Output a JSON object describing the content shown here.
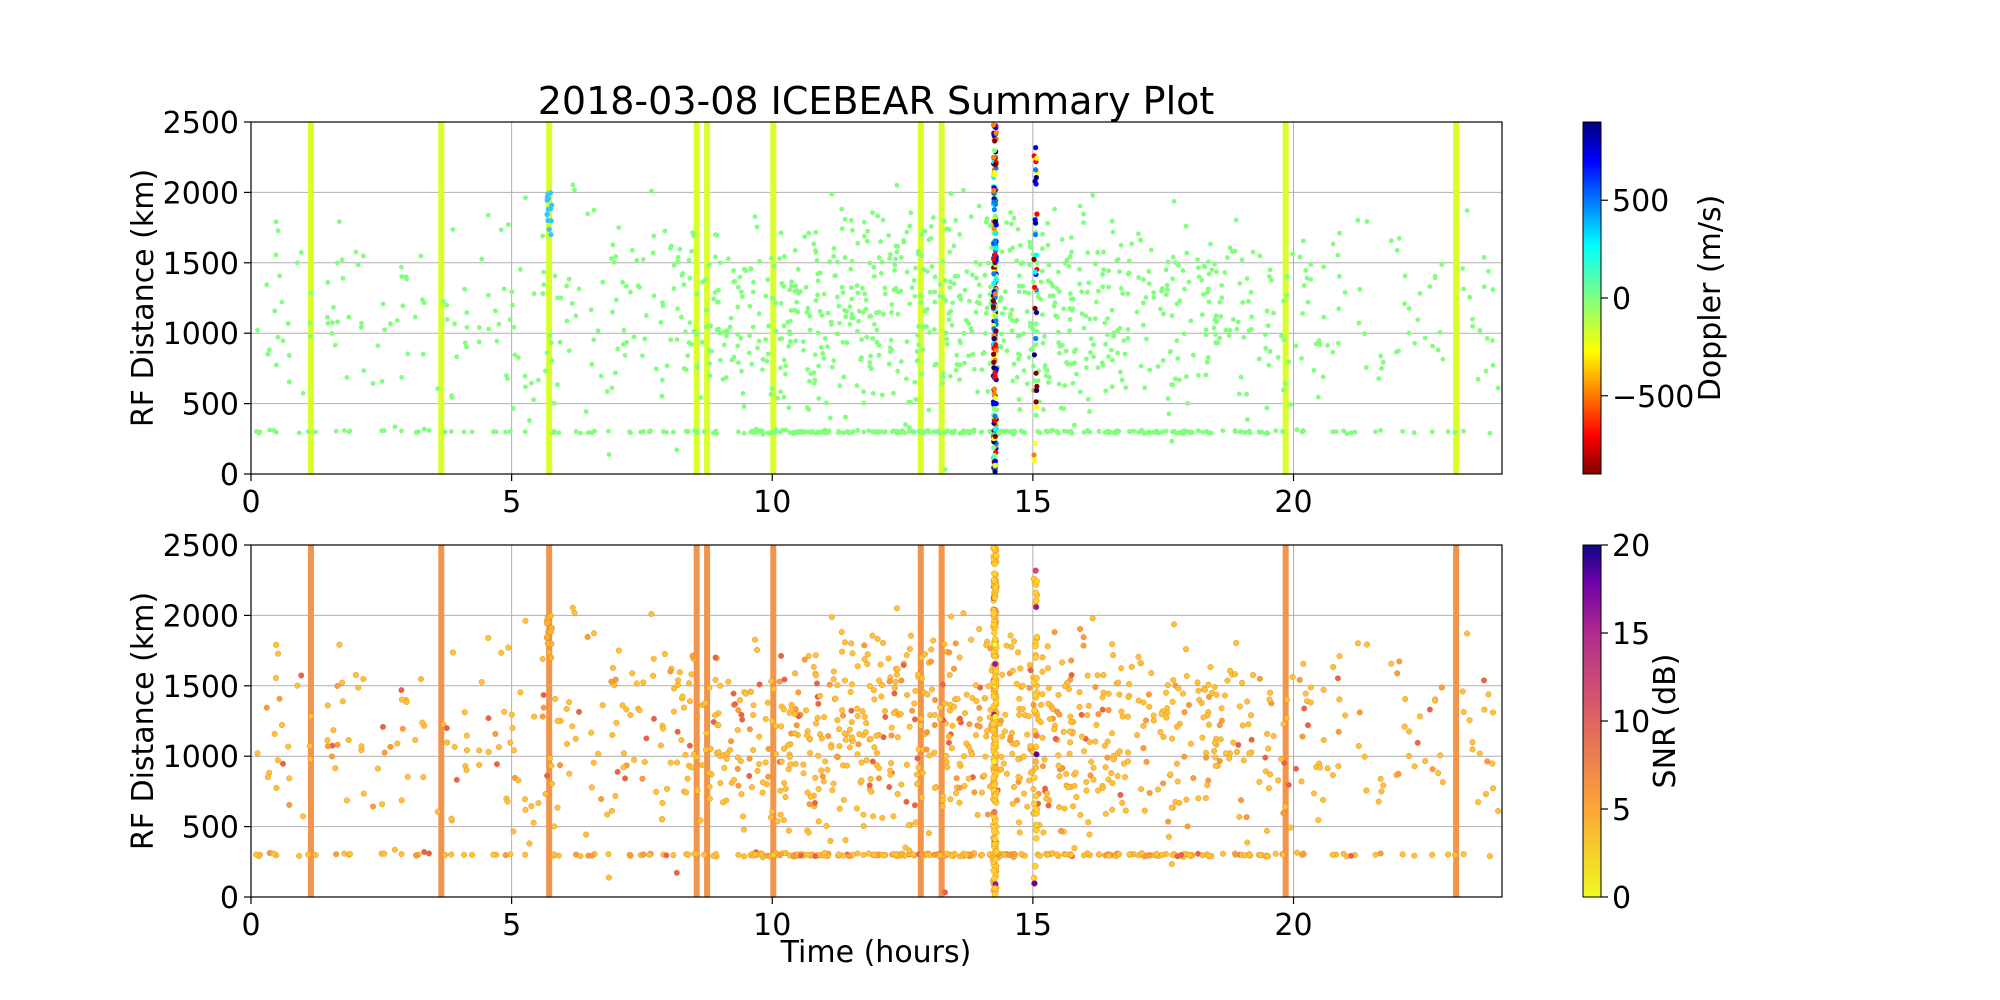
{
  "title": "2018-03-08 ICEBEAR Summary Plot",
  "panels": [
    {
      "ylabel": "RF Distance (km)",
      "xlabel": "",
      "colorbar": {
        "label": "Doppler (m/s)",
        "ticks": [
          "500",
          "0",
          "−500"
        ],
        "tick_values": [
          500,
          0,
          -500
        ],
        "range": [
          -900,
          900
        ],
        "colormap": "jet_r"
      }
    },
    {
      "ylabel": "RF Distance (km)",
      "xlabel": "Time (hours)",
      "colorbar": {
        "label": "SNR (dB)",
        "ticks": [
          "20",
          "15",
          "10",
          "5",
          "0"
        ],
        "tick_values": [
          20,
          15,
          10,
          5,
          0
        ],
        "range": [
          0,
          20
        ],
        "colormap": "plasma_r"
      }
    }
  ],
  "chart_data": {
    "type": "scatter",
    "title": "2018-03-08 ICEBEAR Summary Plot",
    "xlabel": "Time (hours)",
    "ylabel": "RF Distance (km)",
    "xlim": [
      0,
      24
    ],
    "ylim": [
      0,
      2500
    ],
    "x_ticks": [
      "0",
      "5",
      "10",
      "15",
      "20"
    ],
    "x_tick_values": [
      0,
      5,
      10,
      15,
      20
    ],
    "y_ticks": [
      "0",
      "500",
      "1000",
      "1500",
      "2000",
      "2500"
    ],
    "y_tick_values": [
      0,
      500,
      1000,
      1500,
      2000,
      2500
    ],
    "grid": true,
    "colors": {
      "doppler_background": "#7fff7a",
      "doppler_stripe": "#d9ff2a",
      "snr_point": "#ffc234",
      "snr_stripe": "#f2954a"
    },
    "stripes_hours": [
      1.15,
      3.65,
      5.72,
      8.55,
      8.75,
      10.02,
      12.85,
      13.25,
      19.85,
      23.12
    ],
    "dense_column_hours": [
      14.27,
      15.05
    ],
    "scatter_cloud": {
      "count": 1400,
      "time_range_hours": [
        0,
        24
      ],
      "distance_peak_km": 1150,
      "distance_band_km": 300,
      "typical_doppler_ms": -10,
      "typical_snr_db": 2
    }
  }
}
